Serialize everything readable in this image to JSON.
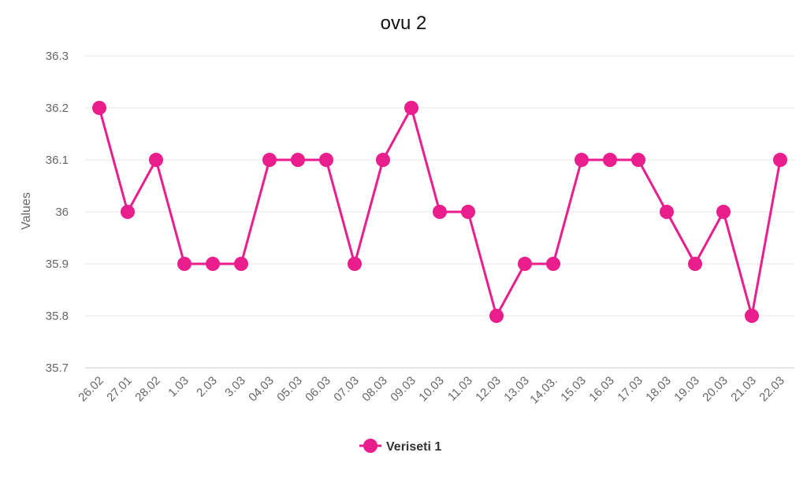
{
  "chart_data": {
    "type": "line",
    "title": "ovu 2",
    "xlabel": "",
    "ylabel": "Values",
    "ylim": [
      35.7,
      36.3
    ],
    "y_ticks": [
      "35.7",
      "35.8",
      "35.9",
      "36",
      "36.1",
      "36.2",
      "36.3"
    ],
    "grid": true,
    "legend_position": "bottom",
    "categories": [
      "26.02",
      "27.01",
      "28.02",
      "1.03",
      "2.03",
      "3.03",
      "04.03",
      "05.03",
      "06.03",
      "07.03",
      "08.03",
      "09.03",
      "10.03",
      "11.03",
      "12.03",
      "13.03",
      "14.03.",
      "15.03",
      "16.03",
      "17.03",
      "18.03",
      "19.03",
      "20.03",
      "21.03",
      "22.03"
    ],
    "series": [
      {
        "name": "Veriseti 1",
        "color": "#e91e8c",
        "values": [
          36.2,
          36.0,
          36.1,
          35.9,
          35.9,
          35.9,
          36.1,
          36.1,
          36.1,
          35.9,
          36.1,
          36.2,
          36.0,
          36.0,
          35.8,
          35.9,
          35.9,
          36.1,
          36.1,
          36.1,
          36.0,
          35.9,
          36.0,
          35.8,
          36.1
        ]
      }
    ]
  }
}
